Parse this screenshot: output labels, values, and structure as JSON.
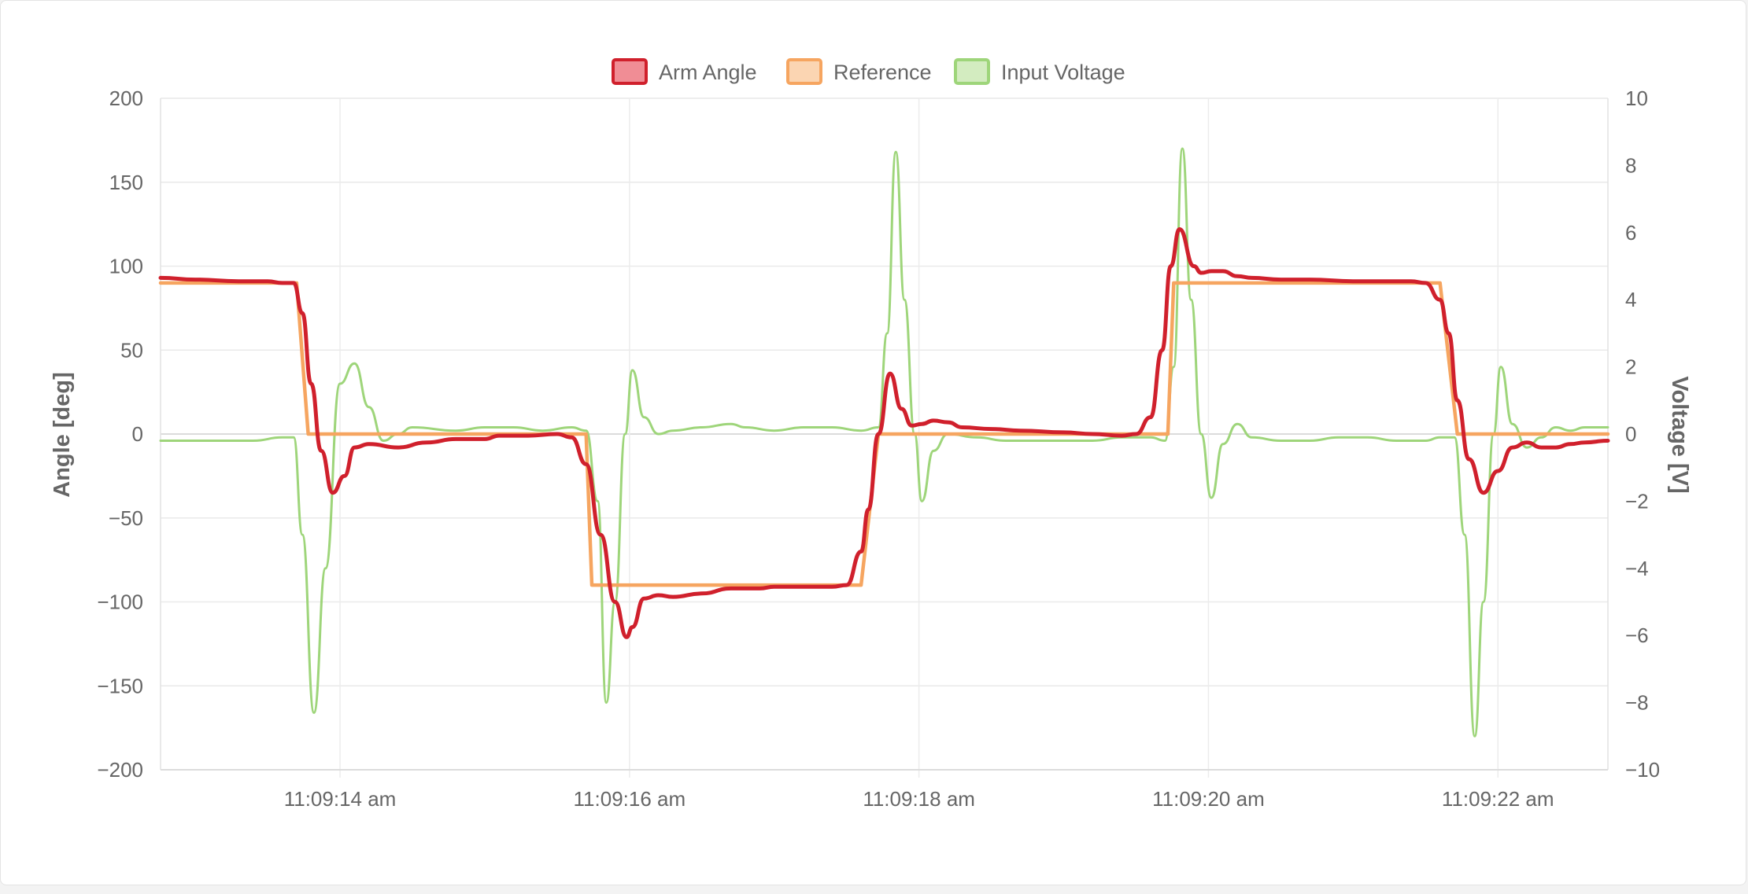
{
  "chart_data": {
    "type": "line",
    "legend_position": "top-center",
    "grid": true,
    "x_axis": {
      "type": "time",
      "tick_labels": [
        "11:09:14 am",
        "11:09:16 am",
        "11:09:18 am",
        "11:09:20 am",
        "11:09:22 am"
      ],
      "tick_seconds": [
        14,
        16,
        18,
        20,
        22
      ],
      "range_seconds": [
        12.76,
        22.76
      ]
    },
    "y_left": {
      "label": "Angle [deg]",
      "range": [
        -200,
        200
      ],
      "ticks": [
        -200,
        -150,
        -100,
        -50,
        0,
        50,
        100,
        150,
        200
      ]
    },
    "y_right": {
      "label": "Voltage [V]",
      "range": [
        -10,
        10
      ],
      "ticks": [
        -10,
        -8,
        -6,
        -4,
        -2,
        0,
        2,
        4,
        6,
        8,
        10
      ]
    },
    "series": [
      {
        "name": "Arm Angle",
        "axis": "left",
        "color": "#d0202c",
        "fill": "#f08d95",
        "x": [
          12.76,
          13.0,
          13.3,
          13.5,
          13.6,
          13.68,
          13.74,
          13.8,
          13.87,
          13.95,
          14.03,
          14.1,
          14.2,
          14.4,
          14.6,
          14.8,
          15.0,
          15.1,
          15.3,
          15.5,
          15.6,
          15.7,
          15.8,
          15.9,
          15.98,
          16.02,
          16.1,
          16.2,
          16.3,
          16.5,
          16.7,
          16.9,
          17.0,
          17.2,
          17.4,
          17.5,
          17.6,
          17.65,
          17.72,
          17.8,
          17.88,
          17.95,
          18.02,
          18.1,
          18.2,
          18.3,
          18.5,
          18.7,
          19.0,
          19.2,
          19.4,
          19.5,
          19.6,
          19.68,
          19.74,
          19.8,
          19.9,
          19.95,
          20.02,
          20.1,
          20.2,
          20.3,
          20.5,
          20.7,
          21.0,
          21.2,
          21.4,
          21.5,
          21.6,
          21.66,
          21.72,
          21.8,
          21.9,
          22.0,
          22.1,
          22.2,
          22.3,
          22.4,
          22.5,
          22.6,
          22.76
        ],
        "y": [
          93,
          92,
          91,
          91,
          90,
          90,
          72,
          30,
          -10,
          -35,
          -25,
          -8,
          -6,
          -8,
          -5,
          -3,
          -3,
          -1,
          -1,
          0,
          -2,
          -18,
          -60,
          -100,
          -121,
          -115,
          -98,
          -96,
          -97,
          -95,
          -92,
          -92,
          -91,
          -91,
          -91,
          -90,
          -70,
          -45,
          0,
          36,
          15,
          5,
          6,
          8,
          7,
          4,
          3,
          2,
          1,
          0,
          -1,
          0,
          10,
          50,
          100,
          122,
          100,
          96,
          97,
          97,
          94,
          93,
          92,
          92,
          91,
          91,
          91,
          90,
          80,
          60,
          20,
          -15,
          -35,
          -22,
          -8,
          -5,
          -8,
          -8,
          -6,
          -5,
          -4
        ]
      },
      {
        "name": "Reference",
        "axis": "left",
        "color": "#f6a560",
        "fill": "#fbd5b2",
        "x": [
          12.76,
          13.7,
          13.78,
          13.82,
          15.6,
          15.7,
          15.74,
          17.6,
          17.72,
          17.76,
          19.6,
          19.72,
          19.76,
          21.6,
          21.72,
          21.76,
          22.76
        ],
        "y": [
          90,
          90,
          0,
          0,
          0,
          0,
          -90,
          -90,
          0,
          0,
          0,
          0,
          90,
          90,
          0,
          0,
          0
        ]
      },
      {
        "name": "Input Voltage",
        "axis": "right",
        "color": "#9ed57a",
        "fill": "#d3ecc0",
        "x": [
          12.76,
          13.0,
          13.4,
          13.6,
          13.68,
          13.74,
          13.82,
          13.9,
          14.0,
          14.1,
          14.2,
          14.3,
          14.4,
          14.5,
          14.8,
          15.0,
          15.2,
          15.4,
          15.6,
          15.7,
          15.78,
          15.84,
          15.9,
          15.97,
          16.02,
          16.1,
          16.2,
          16.3,
          16.5,
          16.7,
          16.8,
          17.0,
          17.2,
          17.4,
          17.6,
          17.72,
          17.78,
          17.84,
          17.9,
          17.97,
          18.02,
          18.1,
          18.2,
          18.4,
          18.6,
          18.8,
          19.0,
          19.2,
          19.4,
          19.6,
          19.7,
          19.76,
          19.82,
          19.88,
          19.95,
          20.02,
          20.1,
          20.2,
          20.3,
          20.5,
          20.7,
          20.9,
          21.1,
          21.3,
          21.5,
          21.6,
          21.7,
          21.77,
          21.84,
          21.9,
          21.97,
          22.02,
          22.1,
          22.2,
          22.3,
          22.4,
          22.5,
          22.6,
          22.76
        ],
        "y": [
          -0.2,
          -0.2,
          -0.2,
          -0.1,
          -0.1,
          -3,
          -8.3,
          -4,
          1.5,
          2.1,
          0.8,
          -0.2,
          0,
          0.2,
          0.1,
          0.2,
          0.2,
          0.1,
          0.2,
          0.1,
          -2,
          -8,
          -5,
          0,
          1.9,
          0.5,
          0,
          0.1,
          0.2,
          0.3,
          0.2,
          0.1,
          0.2,
          0.2,
          0.1,
          0.2,
          3,
          8.4,
          4,
          0,
          -2,
          -0.5,
          0,
          -0.1,
          -0.2,
          -0.2,
          -0.2,
          -0.2,
          -0.1,
          -0.1,
          -0.2,
          2,
          8.5,
          4,
          0,
          -1.9,
          -0.3,
          0.3,
          -0.1,
          -0.2,
          -0.2,
          -0.1,
          -0.1,
          -0.2,
          -0.2,
          -0.1,
          -0.1,
          -3,
          -9,
          -5,
          0,
          2,
          0.3,
          -0.4,
          -0.1,
          0.2,
          0.1,
          0.2,
          0.2
        ]
      }
    ]
  }
}
